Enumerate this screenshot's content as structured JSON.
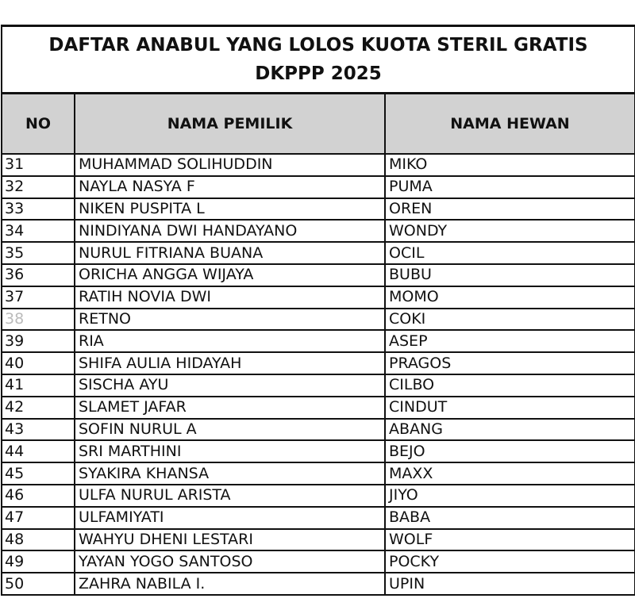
{
  "title": {
    "line1": "DAFTAR ANABUL YANG LOLOS KUOTA STERIL GRATIS",
    "line2": "DKPPP 2025"
  },
  "headers": {
    "no": "NO",
    "owner": "NAMA PEMILIK",
    "pet": "NAMA HEWAN"
  },
  "rows": [
    {
      "no": "31",
      "owner": "MUHAMMAD SOLIHUDDIN",
      "pet": "MIKO"
    },
    {
      "no": "32",
      "owner": "NAYLA NASYA F",
      "pet": "PUMA"
    },
    {
      "no": "33",
      "owner": "NIKEN PUSPITA L",
      "pet": "OREN"
    },
    {
      "no": "34",
      "owner": "NINDIYANA DWI HANDAYANO",
      "pet": "WONDY"
    },
    {
      "no": "35",
      "owner": "NURUL FITRIANA BUANA",
      "pet": "OCIL"
    },
    {
      "no": "36",
      "owner": "ORICHA ANGGA WIJAYA",
      "pet": "BUBU"
    },
    {
      "no": "37",
      "owner": "RATIH NOVIA DWI",
      "pet": "MOMO"
    },
    {
      "no": "38",
      "owner": "RETNO",
      "pet": "COKI"
    },
    {
      "no": "39",
      "owner": "RIA",
      "pet": "ASEP"
    },
    {
      "no": "40",
      "owner": "SHIFA AULIA HIDAYAH",
      "pet": "PRAGOS"
    },
    {
      "no": "41",
      "owner": "SISCHA AYU",
      "pet": "CILBO"
    },
    {
      "no": "42",
      "owner": "SLAMET JAFAR",
      "pet": "CINDUT"
    },
    {
      "no": "43",
      "owner": "SOFIN NURUL A",
      "pet": "ABANG"
    },
    {
      "no": "44",
      "owner": "SRI MARTHINI",
      "pet": "BEJO"
    },
    {
      "no": "45",
      "owner": "SYAKIRA KHANSA",
      "pet": "MAXX"
    },
    {
      "no": "46",
      "owner": "ULFA NURUL ARISTA",
      "pet": "JIYO"
    },
    {
      "no": "47",
      "owner": "ULFAMIYATI",
      "pet": "BABA"
    },
    {
      "no": "48",
      "owner": "WAHYU DHENI LESTARI",
      "pet": "WOLF"
    },
    {
      "no": "49",
      "owner": "YAYAN YOGO SANTOSO",
      "pet": "POCKY"
    },
    {
      "no": "50",
      "owner": "ZAHRA NABILA I.",
      "pet": "UPIN"
    }
  ]
}
